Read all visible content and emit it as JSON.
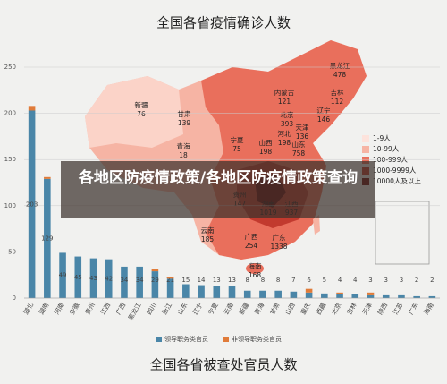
{
  "map": {
    "title": "全国各省疫情确诊人数",
    "provinces": [
      {
        "name": "新疆",
        "value": "76"
      },
      {
        "name": "甘肃",
        "value": "139"
      },
      {
        "name": "青海",
        "value": "18"
      },
      {
        "name": "内蒙古",
        "value": "121"
      },
      {
        "name": "黑龙江",
        "value": "478"
      },
      {
        "name": "吉林",
        "value": "112"
      },
      {
        "name": "辽宁",
        "value": "146"
      },
      {
        "name": "北京",
        "value": "393"
      },
      {
        "name": "河北",
        "value": "198"
      },
      {
        "name": "天津",
        "value": "136"
      },
      {
        "name": "宁夏",
        "value": "75"
      },
      {
        "name": "山西",
        "value": "198"
      },
      {
        "name": "山东",
        "value": "758"
      },
      {
        "name": "贵州",
        "value": "147"
      },
      {
        "name": "湖南",
        "value": "1019"
      },
      {
        "name": "江西",
        "value": "937"
      },
      {
        "name": "云南",
        "value": "185"
      },
      {
        "name": "广西",
        "value": "254"
      },
      {
        "name": "广东",
        "value": "1338"
      },
      {
        "name": "海南",
        "value": "168"
      }
    ],
    "legend": [
      {
        "label": "1-9人",
        "color": "#fde3dc"
      },
      {
        "label": "10-99人",
        "color": "#f6b4a4"
      },
      {
        "label": "100-999人",
        "color": "#e96f5c"
      },
      {
        "label": "1000-9999人",
        "color": "#c23a2e"
      },
      {
        "label": "10000人及以上",
        "color": "#6e0b0b"
      }
    ]
  },
  "banner": {
    "text": "各地区防疫情政策/各地区防疫情政策查询"
  },
  "chart_data": {
    "type": "bar",
    "stacked": true,
    "title": "全国各省被查处官员人数",
    "categories": [
      "湖北",
      "湖南",
      "河南",
      "安徽",
      "贵州",
      "江西",
      "广西",
      "黑龙江",
      "四川",
      "浙江",
      "山东",
      "辽宁",
      "宁夏",
      "云南",
      "新疆",
      "青海",
      "甘肃",
      "山西",
      "重庆",
      "西藏",
      "北京",
      "吉林",
      "天津",
      "陕西",
      "江苏",
      "广东",
      "海南"
    ],
    "series": [
      {
        "name": "领导职务类官员",
        "color": "#4a86a8",
        "values": [
          203,
          129,
          49,
          45,
          43,
          42,
          34,
          34,
          29,
          21,
          15,
          14,
          13,
          13,
          8,
          8,
          8,
          7,
          6,
          5,
          4,
          4,
          3,
          3,
          3,
          2,
          2
        ]
      },
      {
        "name": "非领导职务类官员",
        "color": "#e07b39",
        "values": [
          5,
          2,
          0,
          0,
          0,
          0,
          0,
          0,
          2,
          2,
          0,
          0,
          0,
          0,
          0,
          0,
          0,
          0,
          4,
          0,
          2,
          0,
          3,
          0,
          0,
          0,
          0
        ]
      }
    ],
    "ylim": [
      0,
      250
    ],
    "yticks": [
      0,
      50,
      100,
      150,
      200,
      250
    ],
    "grid": true
  }
}
